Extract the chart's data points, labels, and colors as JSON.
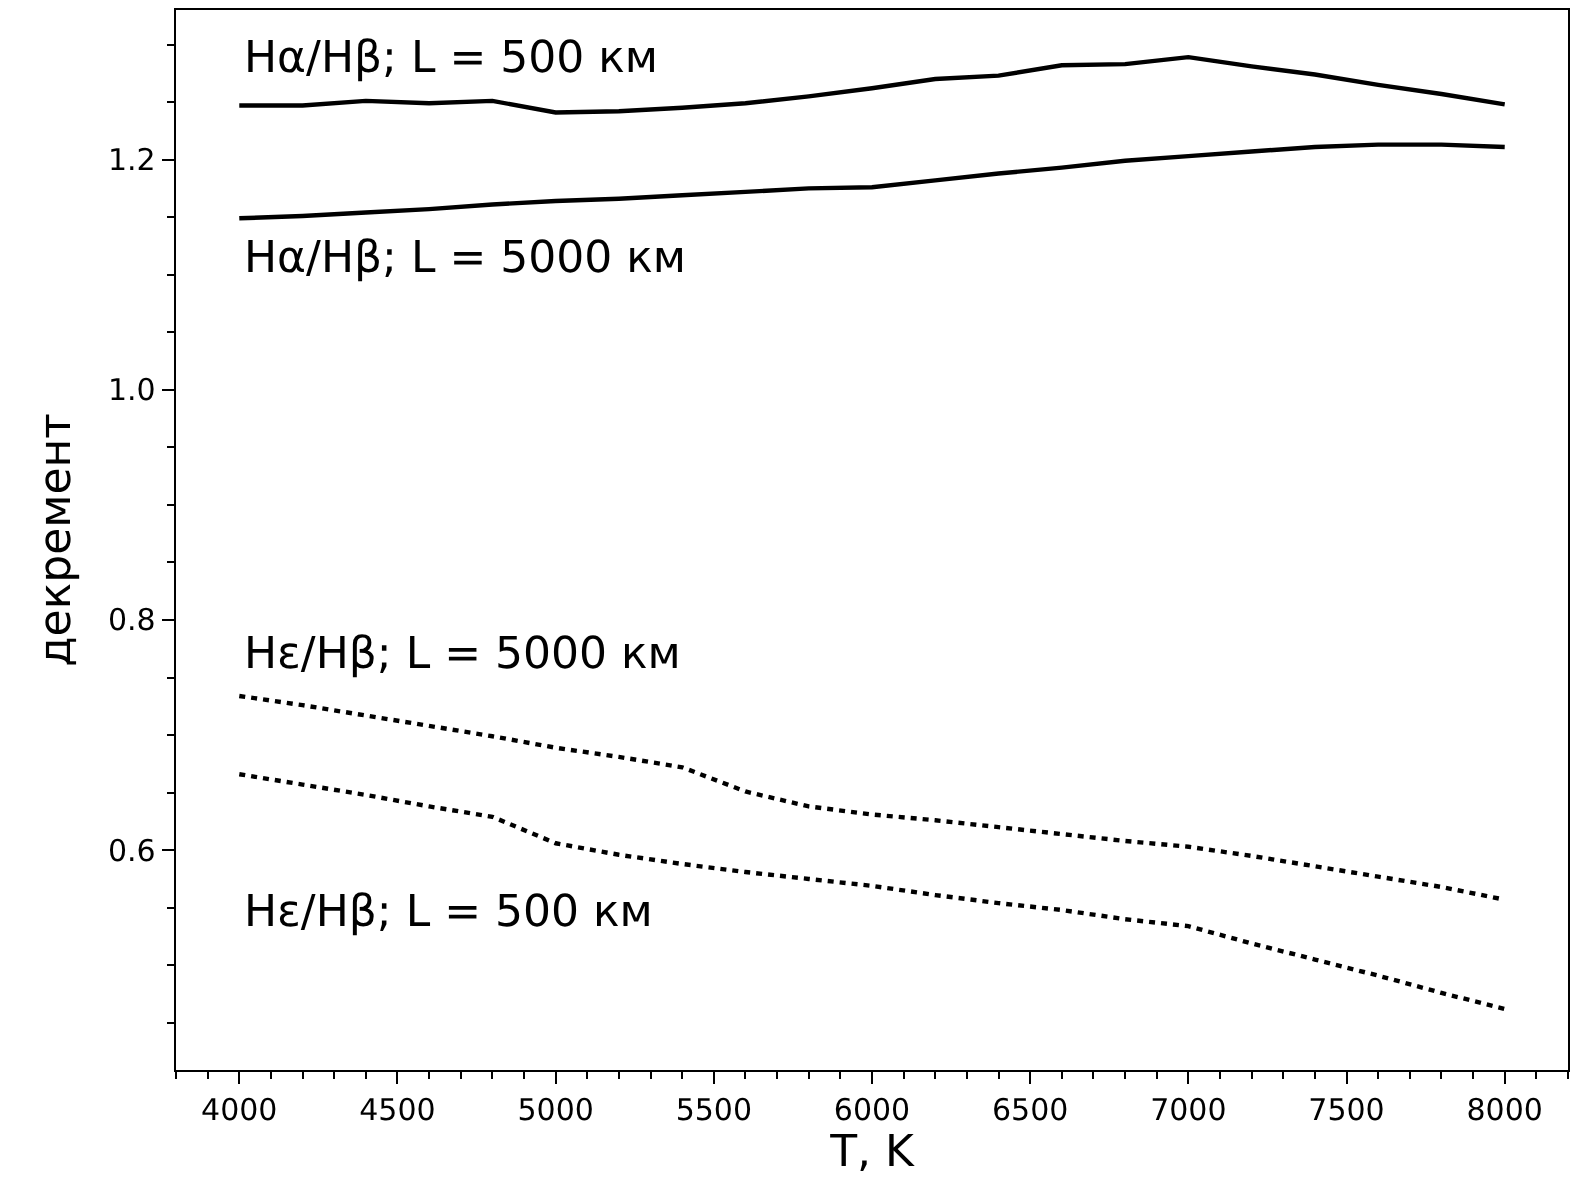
{
  "chart_data": {
    "type": "line",
    "xlabel": "T, K",
    "ylabel": "декремент",
    "x": [
      4000,
      4200,
      4400,
      4600,
      4800,
      5000,
      5200,
      5400,
      5600,
      5800,
      6000,
      6200,
      6400,
      6600,
      6800,
      7000,
      7200,
      7400,
      7600,
      7800,
      8000
    ],
    "series": [
      {
        "name": "Hα/Hβ; L = 500 км",
        "color": "#000000",
        "line_style": "solid",
        "values": [
          1.247,
          1.247,
          1.251,
          1.249,
          1.251,
          1.241,
          1.242,
          1.245,
          1.249,
          1.255,
          1.262,
          1.27,
          1.273,
          1.282,
          1.283,
          1.289,
          1.281,
          1.274,
          1.265,
          1.257,
          1.248
        ]
      },
      {
        "name": "Hα/Hβ; L = 5000 км",
        "color": "#000000",
        "line_style": "solid",
        "values": [
          1.149,
          1.151,
          1.154,
          1.157,
          1.161,
          1.164,
          1.166,
          1.169,
          1.172,
          1.175,
          1.176,
          1.182,
          1.188,
          1.193,
          1.199,
          1.203,
          1.207,
          1.211,
          1.213,
          1.213,
          1.211
        ]
      },
      {
        "name": "Hε/Hβ; L = 5000 км",
        "color": "#000000",
        "line_style": "dotted",
        "values": [
          0.734,
          0.726,
          0.717,
          0.708,
          0.699,
          0.689,
          0.681,
          0.672,
          0.651,
          0.638,
          0.631,
          0.626,
          0.62,
          0.614,
          0.608,
          0.603,
          0.595,
          0.586,
          0.577,
          0.568,
          0.557
        ]
      },
      {
        "name": "Hε/Hβ; L = 500 км",
        "color": "#000000",
        "line_style": "dotted",
        "values": [
          0.666,
          0.657,
          0.648,
          0.638,
          0.629,
          0.606,
          0.596,
          0.588,
          0.581,
          0.575,
          0.569,
          0.561,
          0.554,
          0.548,
          0.54,
          0.534,
          0.519,
          0.505,
          0.491,
          0.476,
          0.462
        ]
      }
    ],
    "xlim": [
      3800,
      8200
    ],
    "ylim": [
      0.409,
      1.33
    ],
    "xticks": [
      4000,
      4500,
      5000,
      5500,
      6000,
      6500,
      7000,
      7500,
      8000
    ],
    "yticks": [
      {
        "value": 0.6,
        "label": "0.6"
      },
      {
        "value": 0.8,
        "label": "0.8"
      },
      {
        "value": 1.0,
        "label": "1.0"
      },
      {
        "value": 1.2,
        "label": "1.2"
      }
    ],
    "legend": false,
    "marker": "none"
  }
}
